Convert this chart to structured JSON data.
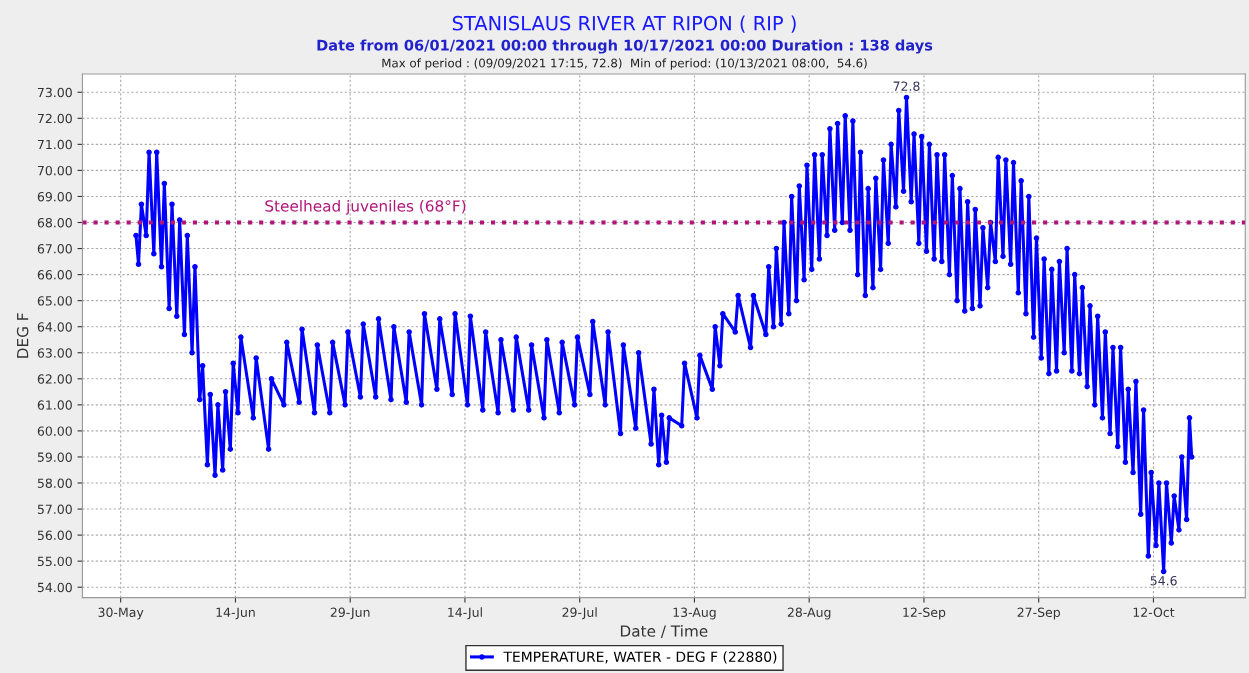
{
  "chart_data": {
    "type": "line",
    "title": "STANISLAUS RIVER AT RIPON ( RIP )",
    "subtitle": "Date from 06/01/2021 00:00 through 10/17/2021 00:00 Duration : 138 days",
    "xlabel": "Date / Time",
    "ylabel": "DEG F",
    "annotations": [
      "Max of period : (09/09/2021 17:15, 72.8)  Min of period: (10/13/2021 08:00,  54.6)",
      {
        "text": "72.8",
        "x": "2021-09-09T17:15",
        "y": 72.8
      },
      {
        "text": "54.6",
        "x": "2021-10-13T08:00",
        "y": 54.6
      }
    ],
    "xlim": [
      "2021-05-25",
      "2021-10-24"
    ],
    "xticks": [
      {
        "value": "2021-05-30",
        "label": "30-May"
      },
      {
        "value": "2021-06-14",
        "label": "14-Jun"
      },
      {
        "value": "2021-06-29",
        "label": "29-Jun"
      },
      {
        "value": "2021-07-14",
        "label": "14-Jul"
      },
      {
        "value": "2021-07-29",
        "label": "29-Jul"
      },
      {
        "value": "2021-08-13",
        "label": "13-Aug"
      },
      {
        "value": "2021-08-28",
        "label": "28-Aug"
      },
      {
        "value": "2021-09-12",
        "label": "12-Sep"
      },
      {
        "value": "2021-09-27",
        "label": "27-Sep"
      },
      {
        "value": "2021-10-12",
        "label": "12-Oct"
      }
    ],
    "ylim": [
      53.6,
      73.7
    ],
    "yticks": [
      {
        "value": 54,
        "label": "54.00"
      },
      {
        "value": 55,
        "label": "55.00"
      },
      {
        "value": 56,
        "label": "56.00"
      },
      {
        "value": 57,
        "label": "57.00"
      },
      {
        "value": 58,
        "label": "58.00"
      },
      {
        "value": 59,
        "label": "59.00"
      },
      {
        "value": 60,
        "label": "60.00"
      },
      {
        "value": 61,
        "label": "61.00"
      },
      {
        "value": 62,
        "label": "62.00"
      },
      {
        "value": 63,
        "label": "63.00"
      },
      {
        "value": 64,
        "label": "64.00"
      },
      {
        "value": 65,
        "label": "65.00"
      },
      {
        "value": 66,
        "label": "66.00"
      },
      {
        "value": 67,
        "label": "67.00"
      },
      {
        "value": 68,
        "label": "68.00"
      },
      {
        "value": 69,
        "label": "69.00"
      },
      {
        "value": 70,
        "label": "70.00"
      },
      {
        "value": 71,
        "label": "71.00"
      },
      {
        "value": 72,
        "label": "72.00"
      },
      {
        "value": 73,
        "label": "73.00"
      }
    ],
    "grid": true,
    "legend": "bottom",
    "marker": "circle",
    "line_style": "solid",
    "ref_lines": [
      {
        "axis": "y",
        "value": 68,
        "label": "Steelhead juveniles (68°F)",
        "color": "#b0157a",
        "line_style": "dotted"
      }
    ],
    "series": [
      {
        "name": "TEMPERATURE, WATER - DEG F (22880)",
        "color": "#0000ff",
        "x": [
          "2021-06-01T00:00",
          "2021-06-01T08:00",
          "2021-06-01T17:00",
          "2021-06-02T08:00",
          "2021-06-02T17:00",
          "2021-06-03T08:00",
          "2021-06-03T17:00",
          "2021-06-04T08:00",
          "2021-06-04T17:00",
          "2021-06-05T08:00",
          "2021-06-05T17:00",
          "2021-06-06T08:00",
          "2021-06-06T17:00",
          "2021-06-07T08:00",
          "2021-06-07T17:00",
          "2021-06-08T08:00",
          "2021-06-08T17:00",
          "2021-06-09T08:00",
          "2021-06-09T17:00",
          "2021-06-10T08:00",
          "2021-06-10T17:00",
          "2021-06-11T08:00",
          "2021-06-11T17:00",
          "2021-06-12T08:00",
          "2021-06-12T17:00",
          "2021-06-13T08:00",
          "2021-06-13T17:00",
          "2021-06-14T08:00",
          "2021-06-14T17:00",
          "2021-06-16T08:00",
          "2021-06-16T17:00",
          "2021-06-18T08:00",
          "2021-06-18T17:00",
          "2021-06-20T08:00",
          "2021-06-20T17:00",
          "2021-06-22T08:00",
          "2021-06-22T17:00",
          "2021-06-24T08:00",
          "2021-06-24T17:00",
          "2021-06-26T08:00",
          "2021-06-26T17:00",
          "2021-06-28T08:00",
          "2021-06-28T17:00",
          "2021-06-30T08:00",
          "2021-06-30T17:00",
          "2021-07-02T08:00",
          "2021-07-02T17:00",
          "2021-07-04T08:00",
          "2021-07-04T17:00",
          "2021-07-06T08:00",
          "2021-07-06T17:00",
          "2021-07-08T08:00",
          "2021-07-08T17:00",
          "2021-07-10T08:00",
          "2021-07-10T17:00",
          "2021-07-12T08:00",
          "2021-07-12T17:00",
          "2021-07-14T08:00",
          "2021-07-14T17:00",
          "2021-07-16T08:00",
          "2021-07-16T17:00",
          "2021-07-18T08:00",
          "2021-07-18T17:00",
          "2021-07-20T08:00",
          "2021-07-20T17:00",
          "2021-07-22T08:00",
          "2021-07-22T17:00",
          "2021-07-24T08:00",
          "2021-07-24T17:00",
          "2021-07-26T08:00",
          "2021-07-26T17:00",
          "2021-07-28T08:00",
          "2021-07-28T17:00",
          "2021-07-30T08:00",
          "2021-07-30T17:00",
          "2021-08-01T08:00",
          "2021-08-01T17:00",
          "2021-08-03T08:00",
          "2021-08-03T17:00",
          "2021-08-05T08:00",
          "2021-08-05T17:00",
          "2021-08-07T08:00",
          "2021-08-07T17:00",
          "2021-08-08T08:00",
          "2021-08-08T17:00",
          "2021-08-09T08:00",
          "2021-08-09T17:00",
          "2021-08-11T08:00",
          "2021-08-11T17:00",
          "2021-08-13T08:00",
          "2021-08-13T17:00",
          "2021-08-15T08:00",
          "2021-08-15T17:00",
          "2021-08-16T08:00",
          "2021-08-16T17:00",
          "2021-08-18T08:00",
          "2021-08-18T17:00",
          "2021-08-20T08:00",
          "2021-08-20T17:00",
          "2021-08-22T08:00",
          "2021-08-22T17:00",
          "2021-08-23T08:00",
          "2021-08-23T17:00",
          "2021-08-24T08:00",
          "2021-08-24T17:00",
          "2021-08-25T08:00",
          "2021-08-25T17:00",
          "2021-08-26T08:00",
          "2021-08-26T17:00",
          "2021-08-27T08:00",
          "2021-08-27T17:00",
          "2021-08-28T08:00",
          "2021-08-28T17:00",
          "2021-08-29T08:00",
          "2021-08-29T17:00",
          "2021-08-30T08:00",
          "2021-08-30T17:00",
          "2021-08-31T08:00",
          "2021-08-31T17:00",
          "2021-09-01T08:00",
          "2021-09-01T17:00",
          "2021-09-02T08:00",
          "2021-09-02T17:00",
          "2021-09-03T08:00",
          "2021-09-03T17:00",
          "2021-09-04T08:00",
          "2021-09-04T17:00",
          "2021-09-05T08:00",
          "2021-09-05T17:00",
          "2021-09-06T08:00",
          "2021-09-06T17:00",
          "2021-09-07T08:00",
          "2021-09-07T17:00",
          "2021-09-08T08:00",
          "2021-09-08T17:00",
          "2021-09-09T08:00",
          "2021-09-09T17:15",
          "2021-09-10T08:00",
          "2021-09-10T17:00",
          "2021-09-11T08:00",
          "2021-09-11T17:00",
          "2021-09-12T08:00",
          "2021-09-12T17:00",
          "2021-09-13T08:00",
          "2021-09-13T17:00",
          "2021-09-14T08:00",
          "2021-09-14T17:00",
          "2021-09-15T08:00",
          "2021-09-15T17:00",
          "2021-09-16T08:00",
          "2021-09-16T17:00",
          "2021-09-17T08:00",
          "2021-09-17T17:00",
          "2021-09-18T08:00",
          "2021-09-18T17:00",
          "2021-09-19T08:00",
          "2021-09-19T17:00",
          "2021-09-20T08:00",
          "2021-09-20T17:00",
          "2021-09-21T08:00",
          "2021-09-21T17:00",
          "2021-09-22T08:00",
          "2021-09-22T17:00",
          "2021-09-23T08:00",
          "2021-09-23T17:00",
          "2021-09-24T08:00",
          "2021-09-24T17:00",
          "2021-09-25T08:00",
          "2021-09-25T17:00",
          "2021-09-26T08:00",
          "2021-09-26T17:00",
          "2021-09-27T08:00",
          "2021-09-27T17:00",
          "2021-09-28T08:00",
          "2021-09-28T17:00",
          "2021-09-29T08:00",
          "2021-09-29T17:00",
          "2021-09-30T08:00",
          "2021-09-30T17:00",
          "2021-10-01T08:00",
          "2021-10-01T17:00",
          "2021-10-02T08:00",
          "2021-10-02T17:00",
          "2021-10-03T08:00",
          "2021-10-03T17:00",
          "2021-10-04T08:00",
          "2021-10-04T17:00",
          "2021-10-05T08:00",
          "2021-10-05T17:00",
          "2021-10-06T08:00",
          "2021-10-06T17:00",
          "2021-10-07T08:00",
          "2021-10-07T17:00",
          "2021-10-08T08:00",
          "2021-10-08T17:00",
          "2021-10-09T08:00",
          "2021-10-09T17:00",
          "2021-10-10T08:00",
          "2021-10-10T17:00",
          "2021-10-11T08:00",
          "2021-10-11T17:00",
          "2021-10-12T08:00",
          "2021-10-12T17:00",
          "2021-10-13T08:00",
          "2021-10-13T17:00",
          "2021-10-14T08:00",
          "2021-10-14T17:00",
          "2021-10-15T08:00",
          "2021-10-15T17:00",
          "2021-10-16T08:00",
          "2021-10-16T17:00",
          "2021-10-17T00:00"
        ],
        "values": [
          67.5,
          66.4,
          68.7,
          67.5,
          70.7,
          66.8,
          70.7,
          66.3,
          69.5,
          64.7,
          68.7,
          64.4,
          68.1,
          63.7,
          67.5,
          63.0,
          66.3,
          61.2,
          62.5,
          58.7,
          61.4,
          58.3,
          61.0,
          58.5,
          61.5,
          59.3,
          62.6,
          60.7,
          63.6,
          60.5,
          62.8,
          59.3,
          62.0,
          61.0,
          63.4,
          61.1,
          63.9,
          60.7,
          63.3,
          60.7,
          63.4,
          61.0,
          63.8,
          61.3,
          64.1,
          61.3,
          64.3,
          61.2,
          64.0,
          61.1,
          63.8,
          61.0,
          64.5,
          61.6,
          64.3,
          61.4,
          64.5,
          61.0,
          64.4,
          60.8,
          63.8,
          60.7,
          63.5,
          60.8,
          63.6,
          60.8,
          63.3,
          60.5,
          63.5,
          60.7,
          63.4,
          61.0,
          63.6,
          61.4,
          64.2,
          61.0,
          63.8,
          59.9,
          63.3,
          60.1,
          63.0,
          59.5,
          61.6,
          58.7,
          60.6,
          58.8,
          60.5,
          60.2,
          62.6,
          60.5,
          62.9,
          61.6,
          64.0,
          62.5,
          64.5,
          63.8,
          65.2,
          63.2,
          65.2,
          63.7,
          66.3,
          64.0,
          67.0,
          64.1,
          68.0,
          64.5,
          69.0,
          65.0,
          69.4,
          65.8,
          70.2,
          66.2,
          70.6,
          66.6,
          70.6,
          67.5,
          71.6,
          67.7,
          71.8,
          68.0,
          72.1,
          67.7,
          71.9,
          66.0,
          70.7,
          65.2,
          69.3,
          65.5,
          69.7,
          66.2,
          70.4,
          67.2,
          71.0,
          68.6,
          72.3,
          69.2,
          72.8,
          68.8,
          71.4,
          67.2,
          71.3,
          66.9,
          71.0,
          66.6,
          70.6,
          66.5,
          70.6,
          66.0,
          69.8,
          65.0,
          69.3,
          64.6,
          68.8,
          64.7,
          68.5,
          64.8,
          67.8,
          65.5,
          68.0,
          66.5,
          70.5,
          66.7,
          70.4,
          66.4,
          70.3,
          65.3,
          69.6,
          64.5,
          69.0,
          63.6,
          67.4,
          62.8,
          66.6,
          62.2,
          66.2,
          62.3,
          66.5,
          63.0,
          67.0,
          62.3,
          66.0,
          62.2,
          65.5,
          61.7,
          64.8,
          61.0,
          64.4,
          60.5,
          63.8,
          59.9,
          63.2,
          59.4,
          63.2,
          58.8,
          61.6,
          58.4,
          61.9,
          56.8,
          60.8,
          55.2,
          58.4,
          55.6,
          58.0,
          54.6,
          58.0,
          55.7,
          57.5,
          56.2,
          59.0,
          56.6,
          60.5,
          59.0
        ]
      }
    ]
  }
}
